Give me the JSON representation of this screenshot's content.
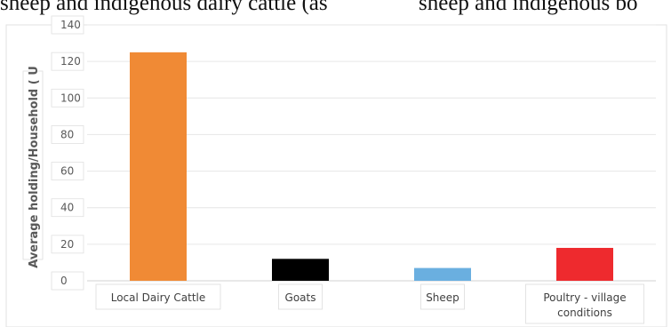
{
  "page_text": {
    "top_left": "sheep and indigenous dairy cattle (as",
    "top_right": "sheep and indigenous bo"
  },
  "chart_data": {
    "type": "bar",
    "categories": [
      "Local Dairy Cattle",
      "Goats",
      "Sheep",
      "Poultry - village conditions"
    ],
    "category_lines": [
      [
        "Local Dairy Cattle"
      ],
      [
        "Goats"
      ],
      [
        "Sheep"
      ],
      [
        "Poultry - village",
        "conditions"
      ]
    ],
    "values": [
      125,
      12,
      7,
      18
    ],
    "colors": [
      "#f08a35",
      "#000000",
      "#6aafe0",
      "#ee2a2e"
    ],
    "ylabel": "Average holding/Household ( U",
    "ylim": [
      0,
      140
    ],
    "yticks": [
      0,
      20,
      40,
      60,
      80,
      100,
      120,
      140
    ],
    "grid": true
  }
}
